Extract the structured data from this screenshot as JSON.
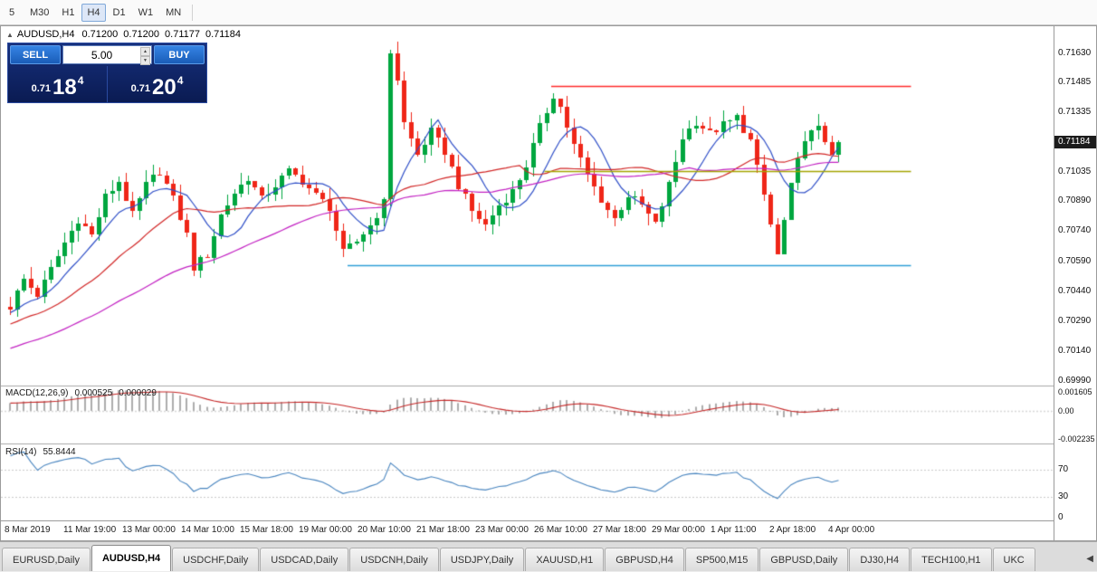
{
  "toolbar": {
    "timeframes": [
      {
        "label": "5",
        "active": false
      },
      {
        "label": "M30",
        "active": false
      },
      {
        "label": "H1",
        "active": false
      },
      {
        "label": "H4",
        "active": true
      },
      {
        "label": "D1",
        "active": false
      },
      {
        "label": "W1",
        "active": false
      },
      {
        "label": "MN",
        "active": false
      }
    ]
  },
  "chart": {
    "symbol_title": "AUDUSD,H4",
    "ohlc_readout": {
      "open": "0.71200",
      "high": "0.71200",
      "low": "0.71177",
      "close": "0.71184"
    },
    "current_price_label": "0.71184",
    "trade_panel": {
      "sell_label": "SELL",
      "buy_label": "BUY",
      "volume": "5.00",
      "bid": {
        "prefix": "0.71",
        "big": "18",
        "sup": "4"
      },
      "ask": {
        "prefix": "0.71",
        "big": "20",
        "sup": "4"
      }
    }
  },
  "chart_data": {
    "type": "candlestick",
    "symbol": "AUDUSD",
    "timeframe": "H4",
    "bars": 123,
    "current_price": 0.71184,
    "y_ticks": [
      "0.71630",
      "0.71485",
      "0.71335",
      "0.71035",
      "0.70890",
      "0.70740",
      "0.70590",
      "0.70440",
      "0.70290",
      "0.70140",
      "0.69990"
    ],
    "x_ticks": [
      "8 Mar 2019",
      "11 Mar 19:00",
      "13 Mar 00:00",
      "14 Mar 10:00",
      "15 Mar 18:00",
      "19 Mar 00:00",
      "20 Mar 10:00",
      "21 Mar 18:00",
      "23 Mar 00:00",
      "26 Mar 10:00",
      "27 Mar 18:00",
      "29 Mar 00:00",
      "1 Apr 11:00",
      "2 Apr 18:00",
      "4 Apr 00:00"
    ],
    "price_keyframes": [
      [
        0,
        0.7036
      ],
      [
        2,
        0.705
      ],
      [
        4,
        0.7042
      ],
      [
        6,
        0.7055
      ],
      [
        8,
        0.7068
      ],
      [
        10,
        0.708
      ],
      [
        12,
        0.7072
      ],
      [
        14,
        0.7091
      ],
      [
        16,
        0.7099
      ],
      [
        18,
        0.7082
      ],
      [
        20,
        0.7097
      ],
      [
        22,
        0.7104
      ],
      [
        24,
        0.709
      ],
      [
        26,
        0.7072
      ],
      [
        27,
        0.7056
      ],
      [
        29,
        0.7062
      ],
      [
        31,
        0.7082
      ],
      [
        33,
        0.7093
      ],
      [
        35,
        0.7101
      ],
      [
        37,
        0.709
      ],
      [
        39,
        0.7097
      ],
      [
        41,
        0.7104
      ],
      [
        43,
        0.7099
      ],
      [
        45,
        0.7092
      ],
      [
        47,
        0.7086
      ],
      [
        49,
        0.7063
      ],
      [
        51,
        0.7069
      ],
      [
        53,
        0.7077
      ],
      [
        55,
        0.7088
      ],
      [
        56,
        0.7164
      ],
      [
        57,
        0.715
      ],
      [
        58,
        0.7128
      ],
      [
        60,
        0.7112
      ],
      [
        62,
        0.7124
      ],
      [
        64,
        0.7114
      ],
      [
        66,
        0.7097
      ],
      [
        68,
        0.7084
      ],
      [
        70,
        0.7077
      ],
      [
        72,
        0.7087
      ],
      [
        74,
        0.7094
      ],
      [
        76,
        0.7107
      ],
      [
        78,
        0.7126
      ],
      [
        80,
        0.7142
      ],
      [
        81,
        0.7136
      ],
      [
        83,
        0.7117
      ],
      [
        85,
        0.7102
      ],
      [
        87,
        0.709
      ],
      [
        89,
        0.708
      ],
      [
        91,
        0.7092
      ],
      [
        93,
        0.7087
      ],
      [
        95,
        0.7077
      ],
      [
        97,
        0.7097
      ],
      [
        99,
        0.7121
      ],
      [
        101,
        0.7129
      ],
      [
        103,
        0.7123
      ],
      [
        105,
        0.7127
      ],
      [
        107,
        0.7131
      ],
      [
        109,
        0.7119
      ],
      [
        111,
        0.7092
      ],
      [
        113,
        0.7062
      ],
      [
        115,
        0.7096
      ],
      [
        117,
        0.7121
      ],
      [
        119,
        0.7125
      ],
      [
        121,
        0.7114
      ],
      [
        122,
        0.71184
      ]
    ],
    "candles": {
      "bull_color": "#00a63f",
      "bear_color": "#ef2618",
      "width": 5,
      "spacing": 7.5
    },
    "moving_averages": [
      {
        "period": 8,
        "color": "#2f4fc8"
      },
      {
        "period": 20,
        "color": "#d22626"
      },
      {
        "period": 45,
        "color": "#c322c3"
      }
    ],
    "hlines": [
      {
        "price": 0.71465,
        "color": "#ff2a2a",
        "from_bar": 80,
        "to_bar": 133
      },
      {
        "price": 0.7104,
        "color": "#a4a400",
        "from_bar": 79,
        "to_bar": 133
      },
      {
        "price": 0.7057,
        "color": "#2e9fd8",
        "from_bar": 50,
        "to_bar": 133
      }
    ],
    "macd": {
      "label": "MACD(12,26,9)",
      "fast": 12,
      "slow": 26,
      "signal_period": 9,
      "value": "0.000525",
      "signal_value": "0.000029",
      "scale_labels": [
        "0.001605",
        "0.00",
        "-0.002235"
      ],
      "scale_max": 0.001605,
      "scale_min": -0.002235,
      "histogram_color": "#adadad",
      "signal_color": "#c62828"
    },
    "rsi": {
      "label": "RSI(14)",
      "period": 14,
      "value": "55.8444",
      "scale_labels": [
        "70",
        "30",
        "0"
      ],
      "levels": [
        70,
        30
      ],
      "color": "#4a86c0"
    }
  },
  "tabbar": {
    "tabs": [
      {
        "label": "EURUSD,Daily",
        "active": false
      },
      {
        "label": "AUDUSD,H4",
        "active": true
      },
      {
        "label": "USDCHF,Daily",
        "active": false
      },
      {
        "label": "USDCAD,Daily",
        "active": false
      },
      {
        "label": "USDCNH,Daily",
        "active": false
      },
      {
        "label": "USDJPY,Daily",
        "active": false
      },
      {
        "label": "XAUUSD,H1",
        "active": false
      },
      {
        "label": "GBPUSD,H4",
        "active": false
      },
      {
        "label": "SP500,M15",
        "active": false
      },
      {
        "label": "GBPUSD,Daily",
        "active": false
      },
      {
        "label": "DJ30,H4",
        "active": false
      },
      {
        "label": "TECH100,H1",
        "active": false
      },
      {
        "label": "UKC",
        "active": false
      }
    ],
    "scroll_arrow": "◀"
  }
}
